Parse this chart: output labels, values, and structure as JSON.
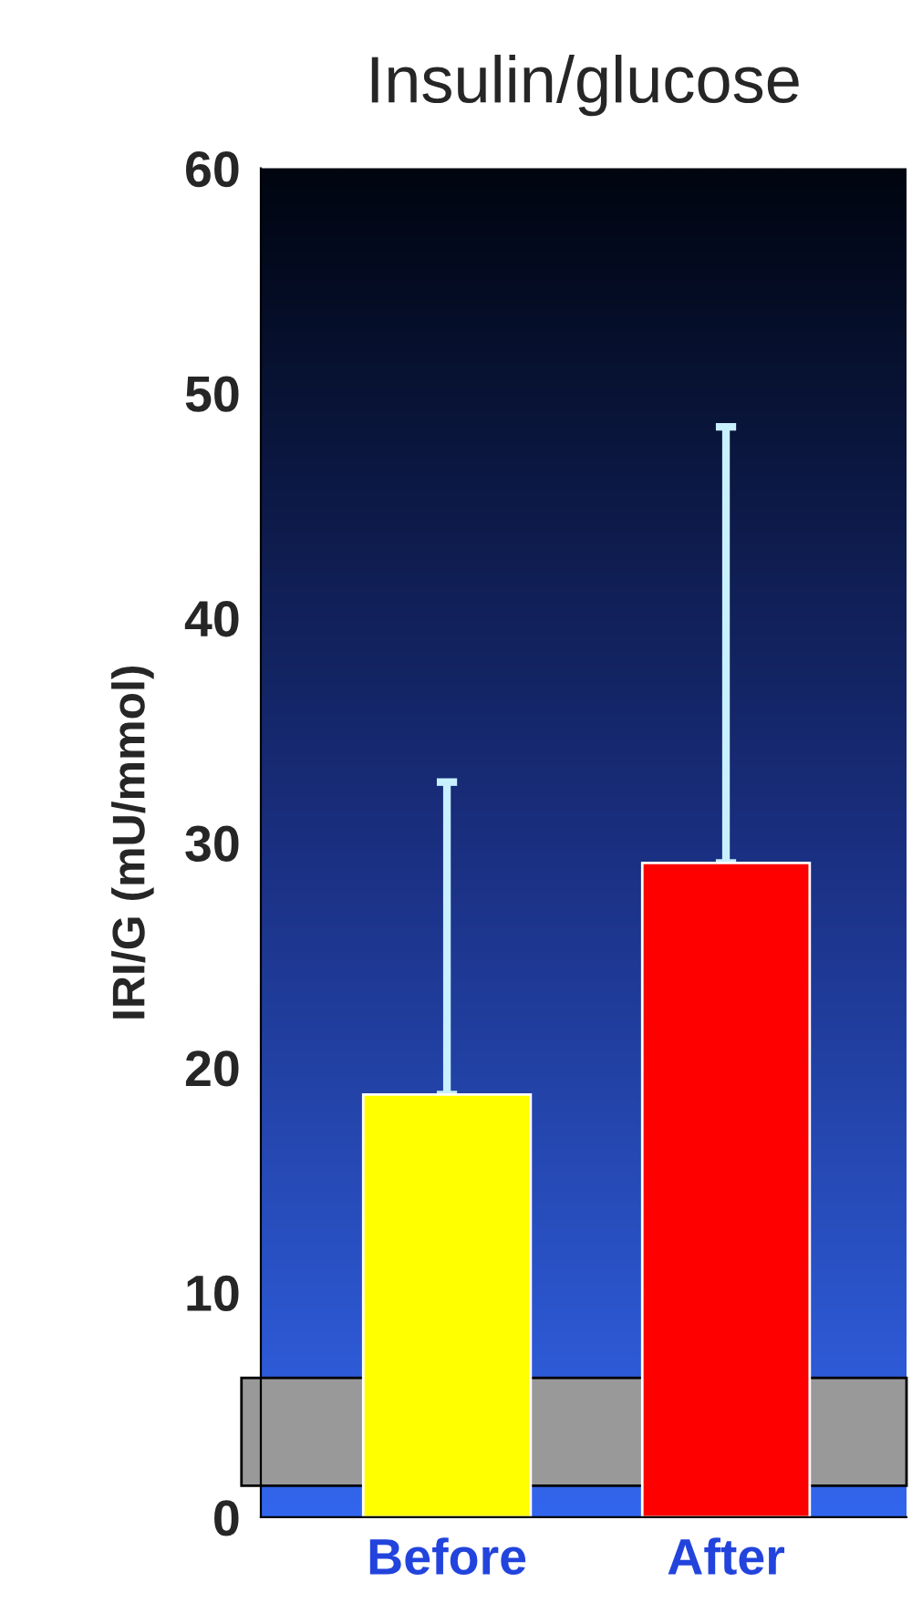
{
  "chart_data": {
    "type": "bar",
    "title": "Insulin/glucose",
    "ylabel": "IRI/G (mU/mmol)",
    "categories": [
      "Before",
      "After"
    ],
    "values": [
      18.8,
      29.1
    ],
    "colors": [
      "#ffff00",
      "#ff0000"
    ],
    "errors": [
      [
        18.8,
        32.7
      ],
      [
        29.1,
        48.5
      ]
    ],
    "ylim": [
      0,
      60
    ],
    "yticks": [
      0,
      10,
      20,
      30,
      40,
      50,
      60
    ],
    "grid": false
  }
}
